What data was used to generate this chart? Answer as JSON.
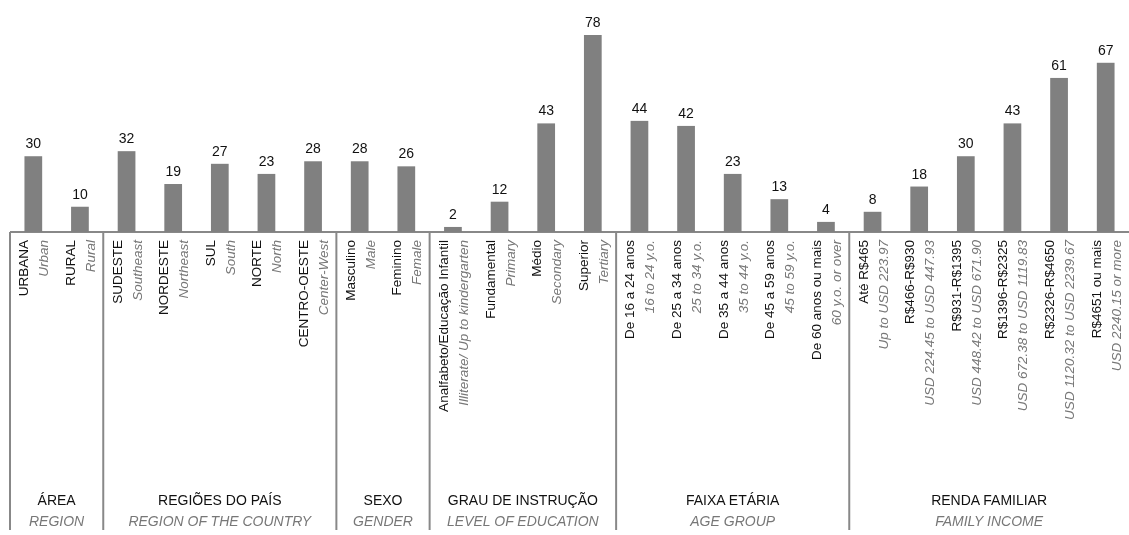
{
  "chart_data": [
    {
      "type": "bar",
      "xlabel": "ÁREA\nREGION",
      "categories": [
        "URBANA\nUrban",
        "RURAL\nRural"
      ],
      "values": [
        30,
        10
      ],
      "color": "#808080",
      "data_labels": true
    },
    {
      "type": "bar",
      "xlabel": "REGIÕES DO PAÍS\nREGION OF THE COUNTRY",
      "categories": [
        "SUDESTE\nSoutheast",
        "NORDESTE\nNortheast",
        "SUL\nSouth",
        "NORTE\nNorth",
        "CENTRO-OESTE\nCenter-West"
      ],
      "values": [
        32,
        19,
        27,
        23,
        28
      ],
      "color": "#808080",
      "data_labels": true
    },
    {
      "type": "bar",
      "xlabel": "SEXO\nGENDER",
      "categories": [
        "Masculino\nMale",
        "Feminino\nFemale"
      ],
      "values": [
        28,
        26
      ],
      "color": "#808080",
      "data_labels": true
    },
    {
      "type": "bar",
      "xlabel": "GRAU DE INSTRUÇÃO\nLEVEL OF EDUCATION",
      "categories": [
        "Analfabeto/Educação Infantil\nIlliterate/ Up to kindergarten",
        "Fundamental\nPrimary",
        "Médio\nSecondary",
        "Superior\nTertiary"
      ],
      "values": [
        2,
        12,
        43,
        78
      ],
      "color": "#808080",
      "data_labels": true
    },
    {
      "type": "bar",
      "xlabel": "FAIXA ETÁRIA\nAGE GROUP",
      "categories": [
        "De 16 a 24 anos\n16 to 24 y.o.",
        "De 25 a 34 anos\n25 to 34 y.o.",
        "De 35 a 44 anos\n35 to 44 y.o.",
        "De 45 a 59 anos\n45 to 59 y.o.",
        "De 60 anos ou mais\n60 y.o. or over"
      ],
      "values": [
        44,
        42,
        23,
        13,
        4
      ],
      "color": "#808080",
      "data_labels": true
    },
    {
      "type": "bar",
      "xlabel": "RENDA FAMILIAR\nFAMILY INCOME",
      "categories": [
        "Até R$465\nUp to USD 223.97",
        "R$466-R$930\nUSD 224.45 to USD 447.93",
        "R$931-R$1395\nUSD 448.42 to USD 671.90",
        "R$1396-R$2325\nUSD 672.38 to USD 1119.83",
        "R$2326-R$4650\nUSD 1120.32 to USD 2239.67",
        "R$4651 ou mais\nUSD 2240.15 or more"
      ],
      "values": [
        8,
        18,
        30,
        43,
        61,
        67
      ],
      "color": "#808080",
      "data_labels": true
    }
  ]
}
